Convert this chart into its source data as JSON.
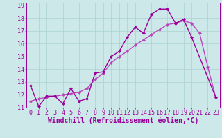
{
  "xlabel": "Windchill (Refroidissement éolien,°C)",
  "bg_color": "#cce8e8",
  "grid_color": "#b0d4d4",
  "line_color": "#990099",
  "line_color2": "#bb44bb",
  "xlim": [
    -0.5,
    23.5
  ],
  "ylim": [
    11,
    19.2
  ],
  "yticks": [
    11,
    12,
    13,
    14,
    15,
    16,
    17,
    18,
    19
  ],
  "xticks": [
    0,
    1,
    2,
    3,
    4,
    5,
    6,
    7,
    8,
    9,
    10,
    11,
    12,
    13,
    14,
    15,
    16,
    17,
    18,
    19,
    20,
    21,
    22,
    23
  ],
  "x": [
    0,
    1,
    2,
    3,
    4,
    5,
    6,
    7,
    8,
    9,
    10,
    11,
    12,
    13,
    14,
    15,
    16,
    17,
    18,
    19,
    20,
    21,
    22,
    23
  ],
  "y_main": [
    12.7,
    11.1,
    11.9,
    11.9,
    11.3,
    12.5,
    11.5,
    11.7,
    13.7,
    13.8,
    15.0,
    15.4,
    16.5,
    17.3,
    16.8,
    18.3,
    18.7,
    18.7,
    17.6,
    17.9,
    16.5,
    null,
    null,
    11.8
  ],
  "y_trend": [
    11.5,
    11.7,
    11.8,
    11.9,
    12.0,
    12.1,
    12.2,
    12.5,
    13.2,
    13.7,
    14.5,
    15.0,
    15.4,
    15.9,
    16.3,
    16.7,
    17.1,
    17.5,
    17.6,
    17.8,
    17.6,
    16.8,
    14.2,
    11.8
  ],
  "xlabel_fontsize": 7,
  "tick_fontsize": 6,
  "linewidth": 1.0,
  "marker_size": 2.5
}
